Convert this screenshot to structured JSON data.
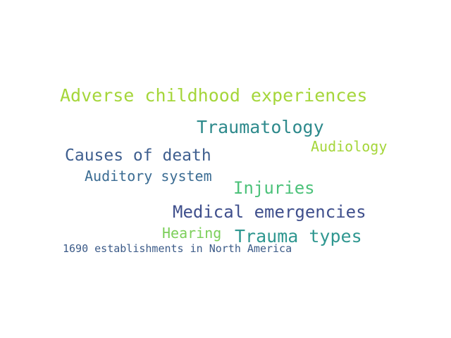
{
  "words": [
    {
      "text": "Adverse childhood experiences",
      "color": "#a5d63a"
    },
    {
      "text": "Traumatology",
      "color": "#2e8a8c"
    },
    {
      "text": "Audiology",
      "color": "#a5d63a"
    },
    {
      "text": "Causes of death",
      "color": "#3f5f8f"
    },
    {
      "text": "Auditory system",
      "color": "#3b6c93"
    },
    {
      "text": "Injuries",
      "color": "#4cc27a"
    },
    {
      "text": "Medical emergencies",
      "color": "#3f4f8c"
    },
    {
      "text": "Hearing",
      "color": "#7ccf5a"
    },
    {
      "text": "Trauma types",
      "color": "#2f9790"
    },
    {
      "text": "1690 establishments in North America",
      "color": "#3c5b88"
    }
  ]
}
